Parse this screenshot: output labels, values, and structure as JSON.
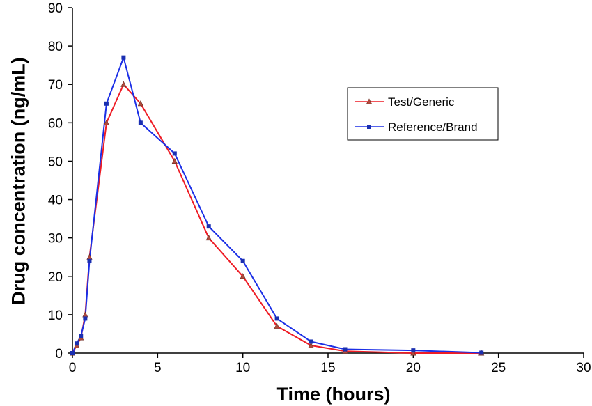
{
  "chart_data": {
    "type": "line",
    "xlabel": "Time (hours)",
    "ylabel": "Drug concentration (ng/mL)",
    "xlim": [
      0,
      30
    ],
    "ylim": [
      0,
      90
    ],
    "x_ticks": [
      "0",
      "5",
      "10",
      "15",
      "20",
      "25",
      "30"
    ],
    "y_ticks": [
      "0",
      "10",
      "20",
      "30",
      "40",
      "50",
      "60",
      "70",
      "80",
      "90"
    ],
    "grid": false,
    "legend_position": "top-right",
    "series": [
      {
        "name": "Test/Generic",
        "color": "#ee1c25",
        "marker": "triangle",
        "marker_color": "#b04a3c",
        "x": [
          0,
          0.25,
          0.5,
          0.75,
          1,
          2,
          3,
          4,
          6,
          8,
          10,
          12,
          14,
          16,
          20,
          24
        ],
        "y": [
          0,
          2,
          4,
          10,
          25,
          60,
          70,
          65,
          50,
          30,
          20,
          7,
          2,
          0.5,
          0,
          0
        ]
      },
      {
        "name": "Reference/Brand",
        "color": "#1b2fe6",
        "marker": "square",
        "marker_color": "#1a2fb0",
        "x": [
          0,
          0.25,
          0.5,
          0.75,
          1,
          2,
          3,
          4,
          6,
          8,
          10,
          12,
          14,
          16,
          20,
          24
        ],
        "y": [
          0,
          2.5,
          4.5,
          9,
          24,
          65,
          77,
          60,
          52,
          33,
          24,
          9,
          3,
          1,
          0.7,
          0.1
        ]
      }
    ]
  }
}
